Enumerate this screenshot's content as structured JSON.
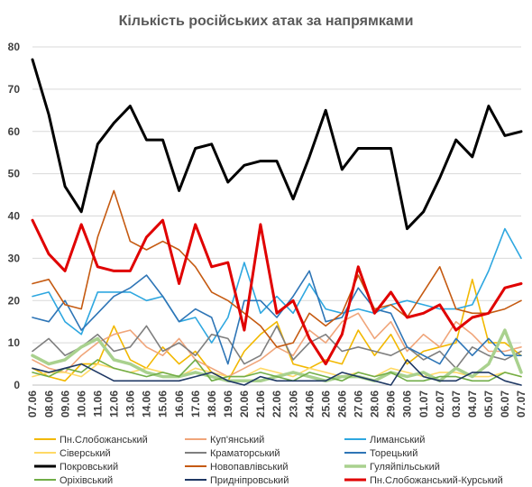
{
  "chart_data": {
    "type": "line",
    "title": "Кількість російських атак за напрямками",
    "xlabel": "",
    "ylabel": "",
    "ylim": [
      0,
      80
    ],
    "yticks": [
      0,
      10,
      20,
      30,
      40,
      50,
      60,
      70,
      80
    ],
    "grid": true,
    "legend_position": "bottom",
    "x": [
      "07.06",
      "08.06",
      "09.06",
      "10.06",
      "11.06",
      "12.06",
      "13.06",
      "14.06",
      "15.06",
      "16.06",
      "17.06",
      "18.06",
      "19.06",
      "20.06",
      "21.06",
      "22.06",
      "23.06",
      "24.06",
      "25.06",
      "26.06",
      "27.06",
      "28.06",
      "29.06",
      "30.06",
      "01.07",
      "02.07",
      "03.07",
      "04.07",
      "05.07",
      "06.07",
      "07.07"
    ],
    "x_tick_labels": [
      "07.06",
      "08.06",
      "09.06",
      "10.06",
      "11.06",
      "12.06",
      "13.06",
      "14.06",
      "15.06",
      "16.06",
      "17.06",
      "18.06",
      "19.06",
      "20.06",
      "21.06",
      "22.06",
      "23.06",
      "24.06",
      "25.06",
      "26.06",
      "27.06",
      "28.06",
      "29.06",
      "30.06",
      "01.07",
      "02.07",
      "03.07",
      "04.07",
      "05.07",
      "06.07",
      "07.07"
    ],
    "series": [
      {
        "name": "Пн.Слобожанський",
        "color": "#F2B800",
        "width": 1.6,
        "values": [
          4,
          2,
          1,
          5,
          5,
          14,
          6,
          4,
          9,
          5,
          8,
          3,
          1,
          8,
          12,
          15,
          5,
          4,
          6,
          5,
          13,
          7,
          12,
          5,
          8,
          9,
          10,
          25,
          10,
          10,
          7
        ]
      },
      {
        "name": "Куп'янський",
        "color": "#F0A57A",
        "width": 1.6,
        "values": [
          6,
          4,
          3,
          7,
          10,
          12,
          13,
          9,
          7,
          11,
          6,
          4,
          2,
          4,
          6,
          9,
          7,
          13,
          10,
          15,
          17,
          11,
          15,
          8,
          12,
          9,
          15,
          12,
          8,
          8,
          9
        ]
      },
      {
        "name": "Лиманський",
        "color": "#2EA7E0",
        "width": 1.6,
        "values": [
          21,
          22,
          15,
          12,
          22,
          22,
          22,
          20,
          21,
          15,
          16,
          10,
          16,
          29,
          17,
          21,
          17,
          24,
          18,
          17,
          18,
          17,
          19,
          20,
          19,
          18,
          18,
          19,
          27,
          37,
          30
        ]
      },
      {
        "name": "Сіверський",
        "color": "#FFD966",
        "width": 1.6,
        "values": [
          2,
          3,
          3,
          2,
          5,
          4,
          3,
          4,
          3,
          2,
          4,
          3,
          2,
          2,
          4,
          3,
          2,
          4,
          3,
          2,
          3,
          2,
          4,
          3,
          2,
          3,
          3,
          2,
          2,
          3,
          2
        ]
      },
      {
        "name": "Краматорський",
        "color": "#7F7F7F",
        "width": 1.6,
        "values": [
          8,
          11,
          7,
          9,
          12,
          8,
          9,
          14,
          8,
          10,
          7,
          12,
          11,
          5,
          7,
          14,
          6,
          10,
          12,
          8,
          9,
          8,
          7,
          9,
          6,
          8,
          4,
          9,
          7,
          6,
          8
        ]
      },
      {
        "name": "Торецький",
        "color": "#2E75B6",
        "width": 1.6,
        "values": [
          16,
          15,
          20,
          13,
          17,
          21,
          23,
          26,
          21,
          15,
          18,
          16,
          5,
          20,
          20,
          16,
          21,
          27,
          15,
          16,
          23,
          18,
          17,
          9,
          7,
          5,
          11,
          7,
          11,
          7,
          7
        ]
      },
      {
        "name": "Покровський",
        "color": "#000000",
        "width": 3,
        "values": [
          77,
          64,
          47,
          41,
          57,
          62,
          66,
          58,
          58,
          46,
          56,
          57,
          48,
          52,
          53,
          53,
          44,
          54,
          65,
          51,
          56,
          56,
          56,
          37,
          41,
          49,
          58,
          54,
          66,
          59,
          60
        ]
      },
      {
        "name": "Новопавлівський",
        "color": "#C55A11",
        "width": 1.6,
        "values": [
          24,
          25,
          19,
          18,
          35,
          46,
          34,
          32,
          34,
          32,
          28,
          22,
          20,
          17,
          14,
          9,
          10,
          17,
          14,
          17,
          26,
          18,
          19,
          16,
          22,
          28,
          18,
          17,
          17,
          18,
          20
        ]
      },
      {
        "name": "Гуляйпільський",
        "color": "#A9D18E",
        "width": 3.5,
        "values": [
          7,
          5,
          6,
          9,
          11,
          6,
          5,
          3,
          2,
          2,
          3,
          2,
          1,
          1,
          1,
          2,
          3,
          2,
          1,
          2,
          2,
          1,
          3,
          2,
          3,
          1,
          4,
          2,
          5,
          13,
          3
        ]
      },
      {
        "name": "Оріхівський",
        "color": "#70AD47",
        "width": 1.6,
        "values": [
          3,
          2,
          4,
          3,
          6,
          4,
          3,
          2,
          3,
          2,
          6,
          1,
          2,
          2,
          3,
          2,
          1,
          3,
          2,
          1,
          3,
          2,
          3,
          1,
          1,
          2,
          2,
          1,
          1,
          3,
          2
        ]
      },
      {
        "name": "Придніпровський",
        "color": "#1F3864",
        "width": 1.6,
        "values": [
          4,
          3,
          4,
          5,
          3,
          1,
          1,
          1,
          1,
          1,
          2,
          3,
          1,
          0,
          2,
          1,
          1,
          1,
          1,
          3,
          2,
          1,
          0,
          6,
          2,
          1,
          1,
          3,
          3,
          1,
          0
        ]
      },
      {
        "name": "Пн.Слобожанський-Курський",
        "color": "#E00000",
        "width": 3,
        "values": [
          39,
          31,
          27,
          38,
          28,
          27,
          27,
          35,
          39,
          24,
          38,
          28,
          29,
          13,
          38,
          17,
          20,
          11,
          5,
          12,
          28,
          17,
          22,
          16,
          17,
          19,
          13,
          16,
          17,
          23,
          24
        ]
      }
    ]
  }
}
